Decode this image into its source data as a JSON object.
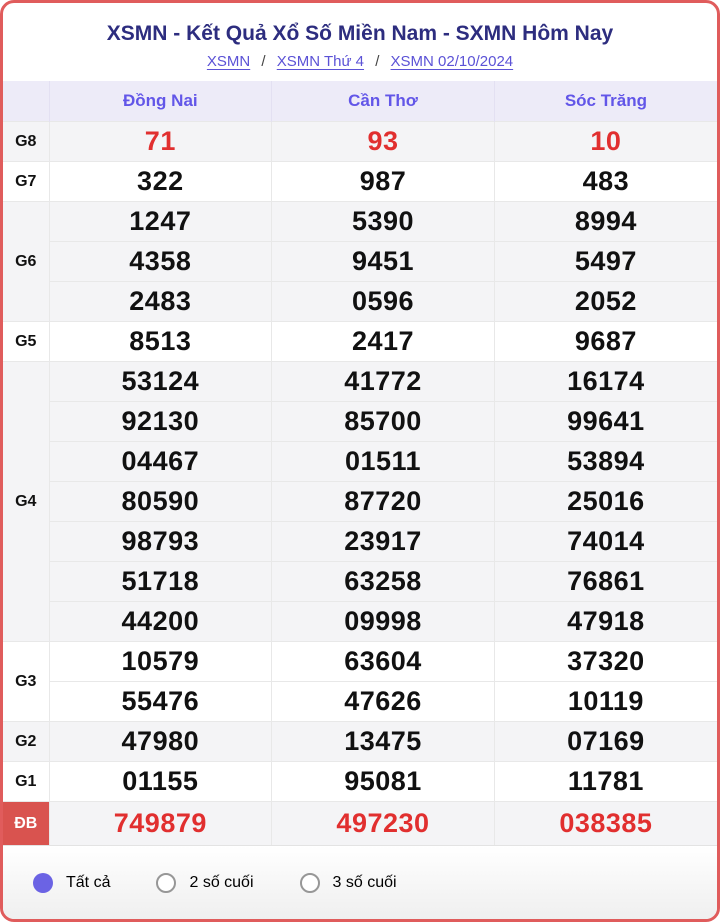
{
  "page": {
    "title": "XSMN - Kết Quả Xổ Số Miền Nam - SXMN Hôm Nay",
    "breadcrumb": {
      "separator": "/",
      "items": [
        "XSMN",
        "XSMN Thứ 4",
        "XSMN 02/10/2024"
      ]
    }
  },
  "table": {
    "columns": [
      "Đồng Nai",
      "Cần Thơ",
      "Sóc Trăng"
    ],
    "groups": [
      {
        "prize": "G8",
        "color": "red",
        "values": [
          [
            "71"
          ],
          [
            "93"
          ],
          [
            "10"
          ]
        ]
      },
      {
        "prize": "G7",
        "values": [
          [
            "322"
          ],
          [
            "987"
          ],
          [
            "483"
          ]
        ]
      },
      {
        "prize": "G6",
        "values": [
          [
            "1247",
            "4358",
            "2483"
          ],
          [
            "5390",
            "9451",
            "0596"
          ],
          [
            "8994",
            "5497",
            "2052"
          ]
        ]
      },
      {
        "prize": "G5",
        "values": [
          [
            "8513"
          ],
          [
            "2417"
          ],
          [
            "9687"
          ]
        ]
      },
      {
        "prize": "G4",
        "values": [
          [
            "53124",
            "92130",
            "04467",
            "80590",
            "98793",
            "51718",
            "44200"
          ],
          [
            "41772",
            "85700",
            "01511",
            "87720",
            "23917",
            "63258",
            "09998"
          ],
          [
            "16174",
            "99641",
            "53894",
            "25016",
            "74014",
            "76861",
            "47918"
          ]
        ]
      },
      {
        "prize": "G3",
        "values": [
          [
            "10579",
            "55476"
          ],
          [
            "63604",
            "47626"
          ],
          [
            "37320",
            "10119"
          ]
        ]
      },
      {
        "prize": "G2",
        "values": [
          [
            "47980"
          ],
          [
            "13475"
          ],
          [
            "07169"
          ]
        ]
      },
      {
        "prize": "G1",
        "values": [
          [
            "01155"
          ],
          [
            "95081"
          ],
          [
            "11781"
          ]
        ]
      },
      {
        "prize": "ĐB",
        "color": "red",
        "special": true,
        "values": [
          [
            "749879"
          ],
          [
            "497230"
          ],
          [
            "038385"
          ]
        ]
      }
    ]
  },
  "filters": {
    "options": [
      {
        "label": "Tất cả",
        "selected": true
      },
      {
        "label": "2 số cuối",
        "selected": false
      },
      {
        "label": "3 số cuối",
        "selected": false
      }
    ]
  },
  "colors": {
    "card_border": "#e05c5c",
    "title_text": "#2d2d7f",
    "breadcrumb_link": "#5b52d6",
    "header_bg": "#edebf8",
    "header_text": "#6256e8",
    "alt_row_bg": "#f4f4f6",
    "highlight_red": "#e12f2f",
    "db_label_bg": "#d9534f",
    "radio_selected": "#6b63e4"
  }
}
